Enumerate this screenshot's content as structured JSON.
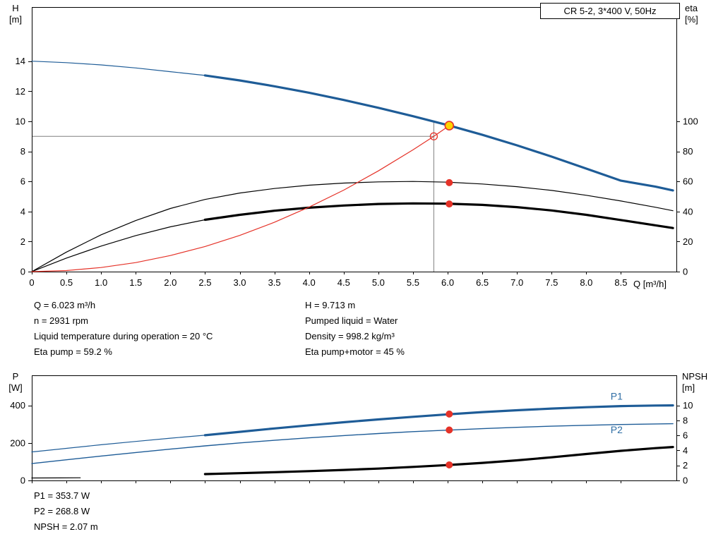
{
  "info": {
    "left": [
      "Q = 6.023 m³/h",
      "n = 2931 rpm",
      "Liquid temperature during operation = 20 °C",
      "Eta pump = 59.2 %"
    ],
    "right": [
      "H = 9.713 m",
      "Pumped liquid = Water",
      "Density = 998.2 kg/m³",
      "Eta pump+motor = 45 %"
    ]
  },
  "results": [
    "P1 = 353.7 W",
    "P2 = 268.8 W",
    "NPSH = 2.07 m"
  ],
  "colors": {
    "curve_blue": "#1e5c97",
    "curve_black": "#000000",
    "accent_red": "#e53228",
    "duty_yellow": "#ffd400",
    "guide_gray": "#808080",
    "label_blue": "#2e6da4"
  },
  "chart_data": [
    {
      "id": "hq",
      "type": "line",
      "title": "CR 5-2, 3*400 V, 50Hz",
      "x_axis": {
        "label": "Q [m³/h]",
        "min": 0,
        "max": 9.3,
        "show_labels": true,
        "ticks": [
          0,
          0.5,
          1.0,
          1.5,
          2.0,
          2.5,
          3.0,
          3.5,
          4.0,
          4.5,
          5.0,
          5.5,
          6.0,
          6.5,
          7.0,
          7.5,
          8.0,
          8.5
        ]
      },
      "y_left": {
        "label": "H",
        "unit": "[m]",
        "min": 0,
        "max": 17.6,
        "ticks": [
          0,
          2,
          4,
          6,
          8,
          10,
          12,
          14
        ]
      },
      "y_right": {
        "label": "eta",
        "unit": "[%]",
        "min": 0,
        "max": 176,
        "ticks": [
          0,
          20,
          40,
          60,
          80,
          100
        ]
      },
      "guides": [
        {
          "type": "h",
          "axis": "left",
          "v": 9.0,
          "q_from": 0,
          "q_to": 5.8,
          "color": "#808080"
        },
        {
          "type": "v",
          "axis": "left",
          "q": 5.8,
          "v_from": 0,
          "v_to": 9.99,
          "color": "#808080"
        }
      ],
      "series": [
        {
          "name": "head-curve-low",
          "axis": "left",
          "color": "#1e5c97",
          "width": 1.2,
          "points": [
            [
              0,
              14.0
            ],
            [
              0.5,
              13.9
            ],
            [
              1,
              13.75
            ],
            [
              1.5,
              13.55
            ],
            [
              2,
              13.3
            ],
            [
              2.5,
              13.05
            ]
          ]
        },
        {
          "name": "head-curve",
          "axis": "left",
          "color": "#1e5c97",
          "width": 3.2,
          "points": [
            [
              2.5,
              13.05
            ],
            [
              3,
              12.72
            ],
            [
              3.5,
              12.33
            ],
            [
              4,
              11.9
            ],
            [
              4.5,
              11.42
            ],
            [
              5,
              10.9
            ],
            [
              5.5,
              10.34
            ],
            [
              6,
              9.75
            ],
            [
              6.5,
              9.1
            ],
            [
              7,
              8.4
            ],
            [
              7.5,
              7.65
            ],
            [
              8,
              6.85
            ],
            [
              8.5,
              6.05
            ],
            [
              9,
              5.65
            ],
            [
              9.25,
              5.4
            ]
          ]
        },
        {
          "name": "eta-pump",
          "axis": "right",
          "color": "#000000",
          "width": 1.2,
          "points": [
            [
              0,
              0
            ],
            [
              0.5,
              13
            ],
            [
              1,
              24.5
            ],
            [
              1.5,
              34
            ],
            [
              2,
              42
            ],
            [
              2.5,
              48
            ],
            [
              3,
              52.3
            ],
            [
              3.5,
              55.3
            ],
            [
              4,
              57.5
            ],
            [
              4.5,
              58.9
            ],
            [
              5,
              59.7
            ],
            [
              5.5,
              60
            ],
            [
              6,
              59.5
            ],
            [
              6.5,
              58.3
            ],
            [
              7,
              56.5
            ],
            [
              7.5,
              54
            ],
            [
              8,
              50.8
            ],
            [
              8.5,
              47
            ],
            [
              9,
              42.8
            ],
            [
              9.25,
              40.5
            ]
          ]
        },
        {
          "name": "eta-pump-motor-low",
          "axis": "right",
          "color": "#000000",
          "width": 1.2,
          "points": [
            [
              0,
              0
            ],
            [
              0.5,
              9
            ],
            [
              1,
              17
            ],
            [
              1.5,
              24
            ],
            [
              2,
              29.8
            ],
            [
              2.5,
              34.5
            ]
          ]
        },
        {
          "name": "eta-pump-motor",
          "axis": "right",
          "color": "#000000",
          "width": 3.2,
          "points": [
            [
              2.5,
              34.5
            ],
            [
              3,
              37.8
            ],
            [
              3.5,
              40.5
            ],
            [
              4,
              42.5
            ],
            [
              4.5,
              44
            ],
            [
              5,
              45
            ],
            [
              5.5,
              45.4
            ],
            [
              6,
              45.2
            ],
            [
              6.5,
              44.4
            ],
            [
              7,
              42.9
            ],
            [
              7.5,
              40.7
            ],
            [
              8,
              37.8
            ],
            [
              8.5,
              34.3
            ],
            [
              9,
              30.8
            ],
            [
              9.25,
              29
            ]
          ]
        },
        {
          "name": "system-curve",
          "axis": "left",
          "color": "#e53228",
          "width": 1.2,
          "points": [
            [
              0,
              0
            ],
            [
              0.5,
              0.07
            ],
            [
              1,
              0.27
            ],
            [
              1.5,
              0.6
            ],
            [
              2,
              1.07
            ],
            [
              2.5,
              1.67
            ],
            [
              3,
              2.41
            ],
            [
              3.5,
              3.28
            ],
            [
              4,
              4.29
            ],
            [
              4.5,
              5.42
            ],
            [
              5,
              6.7
            ],
            [
              5.5,
              8.1
            ],
            [
              5.8,
              9.0
            ],
            [
              6.023,
              9.713
            ]
          ]
        }
      ],
      "markers": [
        {
          "name": "requested-duty-point",
          "axis": "left",
          "q": 5.8,
          "v": 9.0,
          "r": 5,
          "fill": "none",
          "stroke": "#e53228",
          "stroke_width": 1.3
        },
        {
          "name": "duty-point",
          "axis": "left",
          "q": 6.023,
          "v": 9.713,
          "r": 6,
          "fill": "#ffd400",
          "stroke": "#e53228",
          "stroke_width": 1.6
        },
        {
          "name": "eta-pump-point",
          "axis": "right",
          "q": 6.023,
          "v": 59.2,
          "r": 5,
          "fill": "#e53228",
          "stroke": "none"
        },
        {
          "name": "eta-pump-motor-point",
          "axis": "right",
          "q": 6.023,
          "v": 45,
          "r": 5,
          "fill": "#e53228",
          "stroke": "none"
        }
      ],
      "annotations": []
    },
    {
      "id": "power",
      "type": "line",
      "title": "",
      "x_axis": {
        "label": "",
        "min": 0,
        "max": 9.3,
        "show_labels": false,
        "ticks": [
          0,
          0.5,
          1.0,
          1.5,
          2.0,
          2.5,
          3.0,
          3.5,
          4.0,
          4.5,
          5.0,
          5.5,
          6.0,
          6.5,
          7.0,
          7.5,
          8.0,
          8.5
        ]
      },
      "y_left": {
        "label": "P",
        "unit": "[W]",
        "min": 0,
        "max": 560,
        "ticks": [
          0,
          200,
          400
        ]
      },
      "y_right": {
        "label": "NPSH",
        "unit": "[m]",
        "min": 0,
        "max": 14,
        "ticks": [
          0,
          2,
          4,
          6,
          8,
          10
        ]
      },
      "guides": [],
      "series": [
        {
          "name": "p1-low",
          "axis": "left",
          "color": "#1e5c97",
          "width": 1.2,
          "points": [
            [
              0,
              152
            ],
            [
              0.5,
              171
            ],
            [
              1,
              190
            ],
            [
              1.5,
              208
            ],
            [
              2,
              225
            ],
            [
              2.5,
              241
            ]
          ]
        },
        {
          "name": "p1",
          "axis": "left",
          "color": "#1e5c97",
          "width": 3.2,
          "points": [
            [
              2.5,
              241
            ],
            [
              3,
              259
            ],
            [
              3.5,
              277
            ],
            [
              4,
              294
            ],
            [
              4.5,
              310
            ],
            [
              5,
              325
            ],
            [
              5.5,
              339
            ],
            [
              6,
              352
            ],
            [
              6.5,
              364
            ],
            [
              7,
              374
            ],
            [
              7.5,
              383
            ],
            [
              8,
              390
            ],
            [
              8.5,
              396
            ],
            [
              9,
              399
            ],
            [
              9.25,
              400
            ]
          ]
        },
        {
          "name": "p2",
          "axis": "left",
          "color": "#1e5c97",
          "width": 1.4,
          "points": [
            [
              0,
              90
            ],
            [
              0.5,
              110
            ],
            [
              1,
              130
            ],
            [
              1.5,
              149
            ],
            [
              2,
              167
            ],
            [
              2.5,
              184
            ],
            [
              3,
              200
            ],
            [
              3.5,
              214
            ],
            [
              4,
              227
            ],
            [
              4.5,
              239
            ],
            [
              5,
              250
            ],
            [
              5.5,
              260
            ],
            [
              6,
              268
            ],
            [
              6.5,
              276
            ],
            [
              7,
              283
            ],
            [
              7.5,
              289
            ],
            [
              8,
              294
            ],
            [
              8.5,
              298
            ],
            [
              9,
              301
            ],
            [
              9.25,
              302
            ]
          ]
        },
        {
          "name": "npsh-low",
          "axis": "right",
          "color": "#000000",
          "width": 1.2,
          "points": [
            [
              0,
              0.33
            ],
            [
              0.4,
              0.34
            ],
            [
              0.7,
              0.36
            ]
          ]
        },
        {
          "name": "npsh",
          "axis": "right",
          "color": "#000000",
          "width": 3.2,
          "points": [
            [
              2.5,
              0.85
            ],
            [
              3,
              0.97
            ],
            [
              3.5,
              1.1
            ],
            [
              4,
              1.24
            ],
            [
              4.5,
              1.4
            ],
            [
              5,
              1.58
            ],
            [
              5.5,
              1.8
            ],
            [
              6,
              2.05
            ],
            [
              6.5,
              2.34
            ],
            [
              7,
              2.68
            ],
            [
              7.5,
              3.08
            ],
            [
              8,
              3.52
            ],
            [
              8.5,
              3.95
            ],
            [
              9,
              4.3
            ],
            [
              9.25,
              4.45
            ]
          ]
        }
      ],
      "markers": [
        {
          "name": "p1-point",
          "axis": "left",
          "q": 6.023,
          "v": 353.7,
          "r": 5,
          "fill": "#e53228",
          "stroke": "none"
        },
        {
          "name": "p2-point",
          "axis": "left",
          "q": 6.023,
          "v": 268.8,
          "r": 5,
          "fill": "#e53228",
          "stroke": "none"
        },
        {
          "name": "npsh-point",
          "axis": "right",
          "q": 6.023,
          "v": 2.07,
          "r": 5,
          "fill": "#e53228",
          "stroke": "none"
        }
      ],
      "annotations": [
        {
          "text": "P1",
          "axis": "left",
          "q": 8.35,
          "v": 430,
          "color": "#2e6da4"
        },
        {
          "text": "P2",
          "axis": "left",
          "q": 8.35,
          "v": 252,
          "color": "#2e6da4"
        }
      ]
    }
  ]
}
